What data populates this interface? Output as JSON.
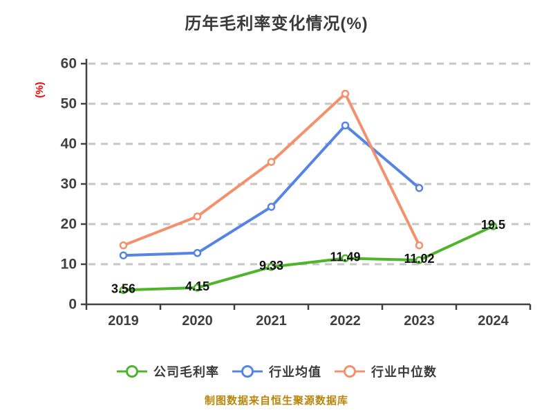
{
  "caption": "制图数据来自恒生聚源数据库",
  "colors": {
    "background": "#ffffff",
    "title_text": "#3a3a3a",
    "axis": "#404040",
    "grid": "#c6c6c6",
    "data_label_text": "#111111",
    "unit_label": "#ff0000",
    "caption_text": "#b8860b",
    "marker_fill": "#ffffff"
  },
  "chart_data": {
    "type": "line",
    "title": "历年毛利率变化情况(%)",
    "categories": [
      "2019",
      "2020",
      "2021",
      "2022",
      "2023",
      "2024"
    ],
    "xlabel": "",
    "ylabel": "(%)",
    "ylim": [
      0,
      60
    ],
    "y_ticks": [
      0,
      10,
      20,
      30,
      40,
      50,
      60
    ],
    "grid": "horizontal-dashed",
    "legend_position": "bottom",
    "series": [
      {
        "name": "公司毛利率",
        "color": "#4eb42a",
        "values": [
          3.56,
          4.15,
          9.33,
          11.49,
          11.02,
          19.5
        ],
        "data_labels": [
          "3.56",
          "4.15",
          "9.33",
          "11.49",
          "11.02",
          "19.5"
        ]
      },
      {
        "name": "行业均值",
        "color": "#5584e4",
        "values": [
          12.2,
          12.8,
          24.3,
          44.6,
          29.0,
          null
        ],
        "data_labels": null
      },
      {
        "name": "行业中位数",
        "color": "#f3916c",
        "values": [
          14.7,
          21.9,
          35.5,
          52.5,
          14.7,
          null
        ],
        "data_labels": null
      }
    ]
  }
}
